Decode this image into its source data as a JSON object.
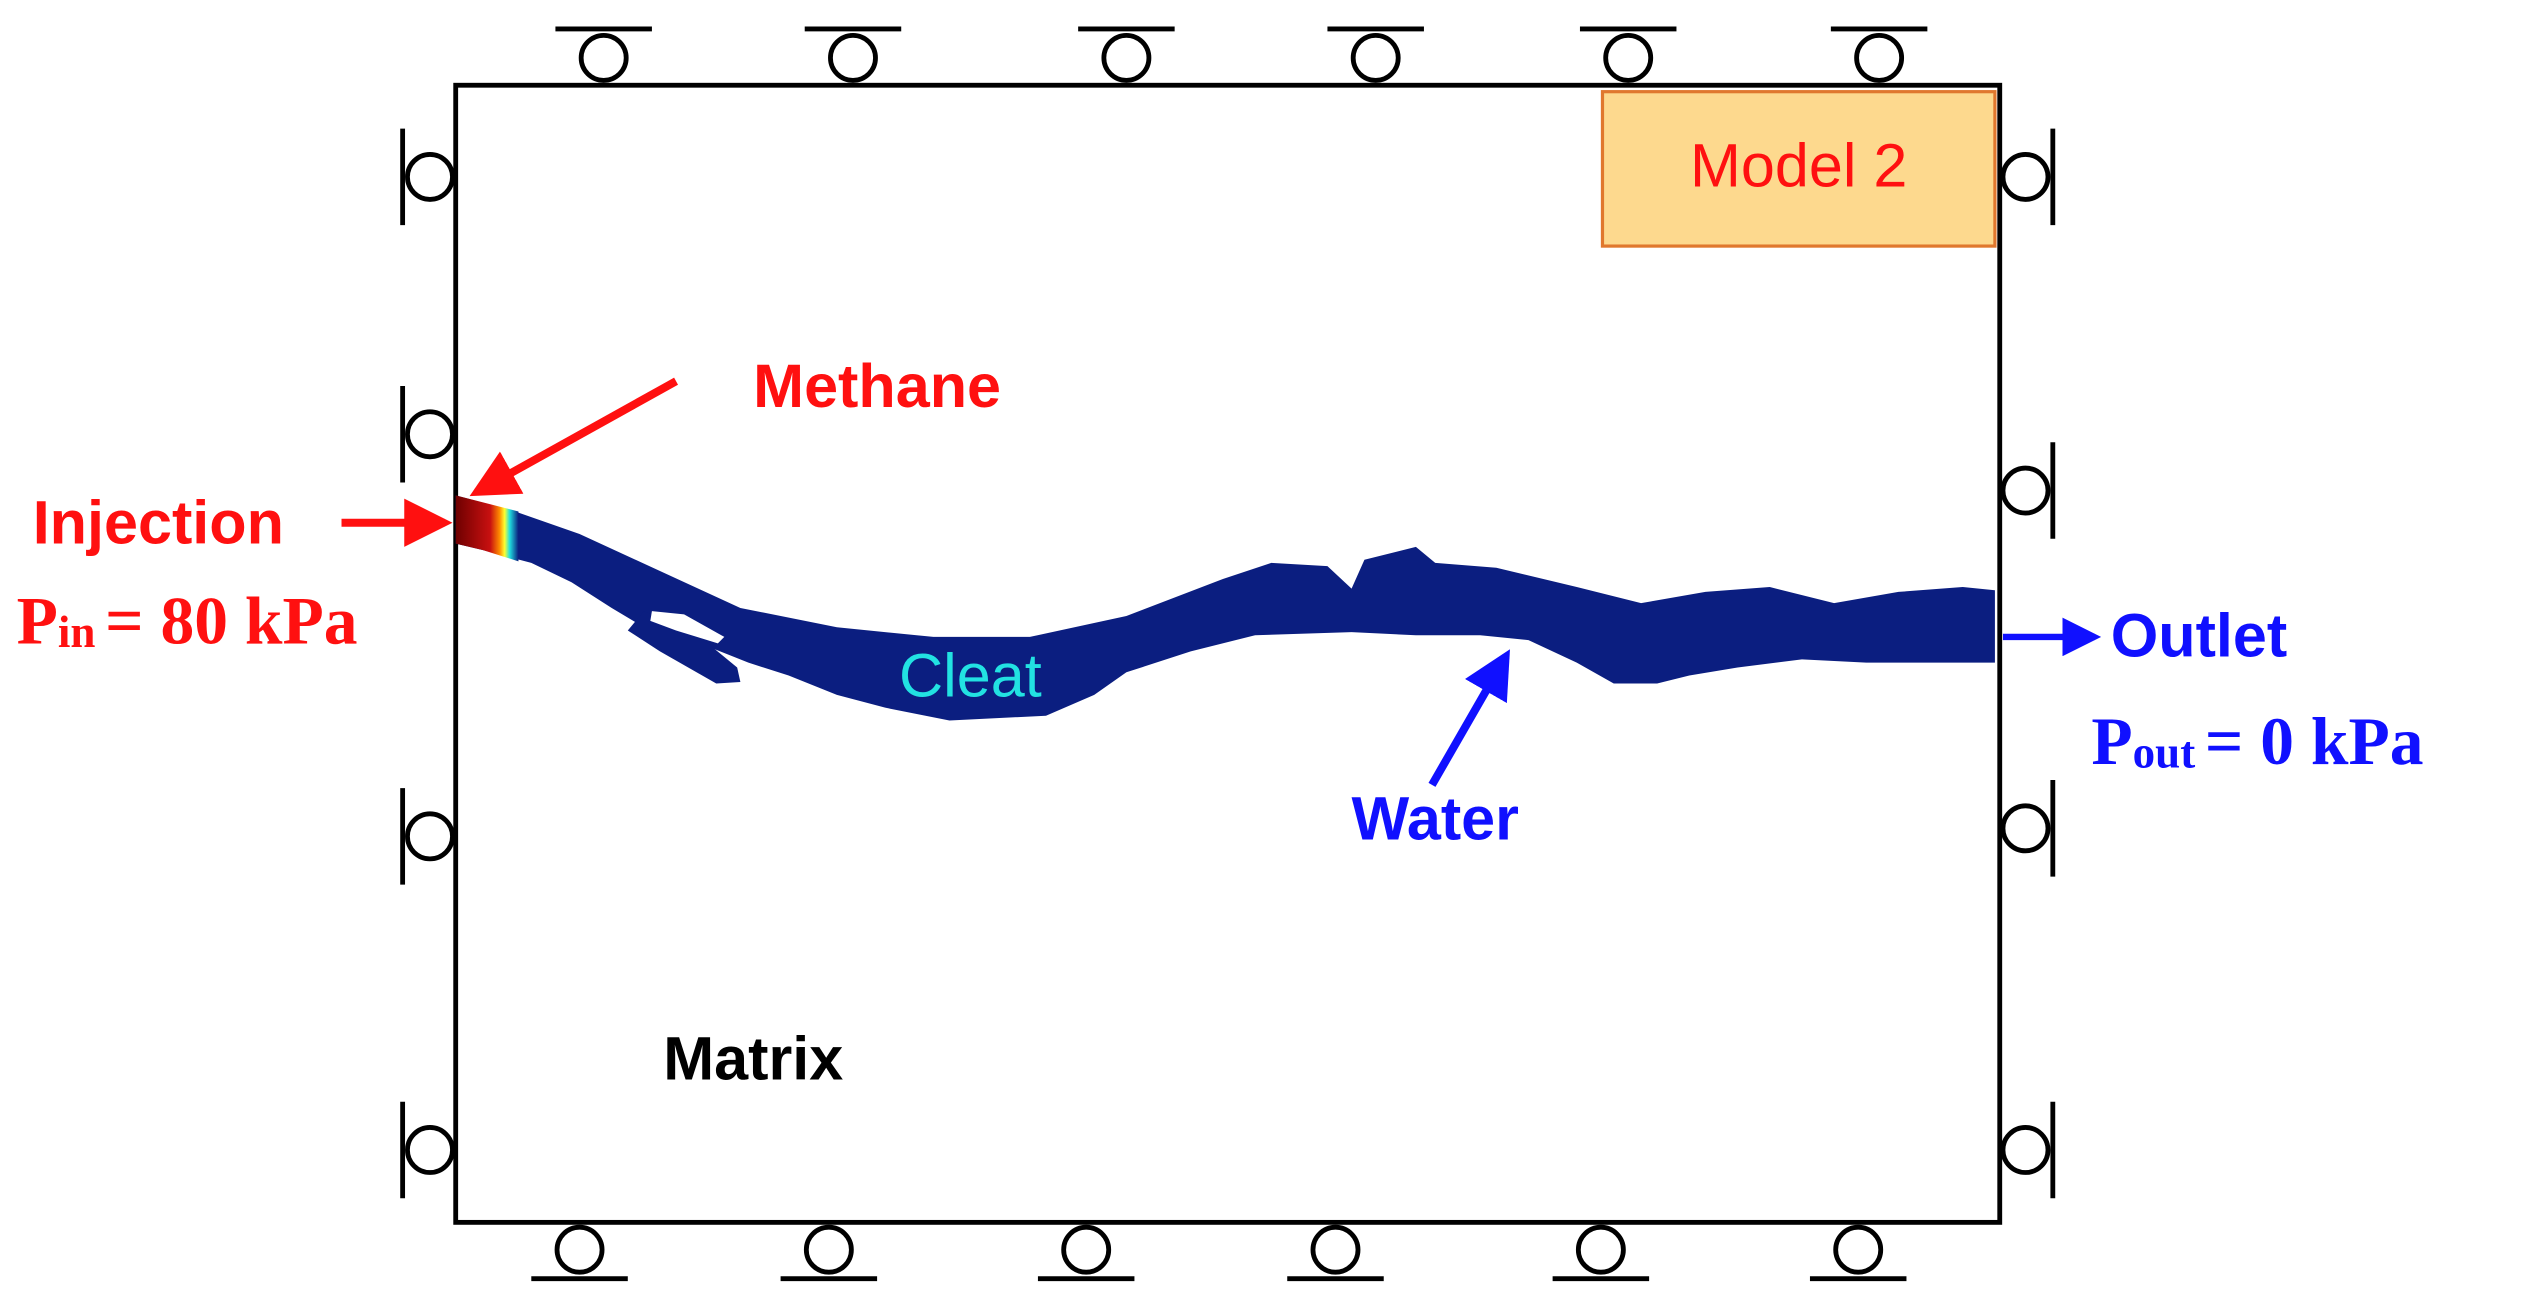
{
  "model_label": "Model 2",
  "labels": {
    "methane": "Methane",
    "injection": "Injection",
    "cleat": "Cleat",
    "water": "Water",
    "outlet": "Outlet",
    "matrix": "Matrix"
  },
  "inlet_pressure": {
    "symbol": "P",
    "subscript": "in",
    "rest": "= 80 kPa"
  },
  "outlet_pressure": {
    "symbol": "P",
    "subscript": "out",
    "rest": "= 0 kPa"
  }
}
